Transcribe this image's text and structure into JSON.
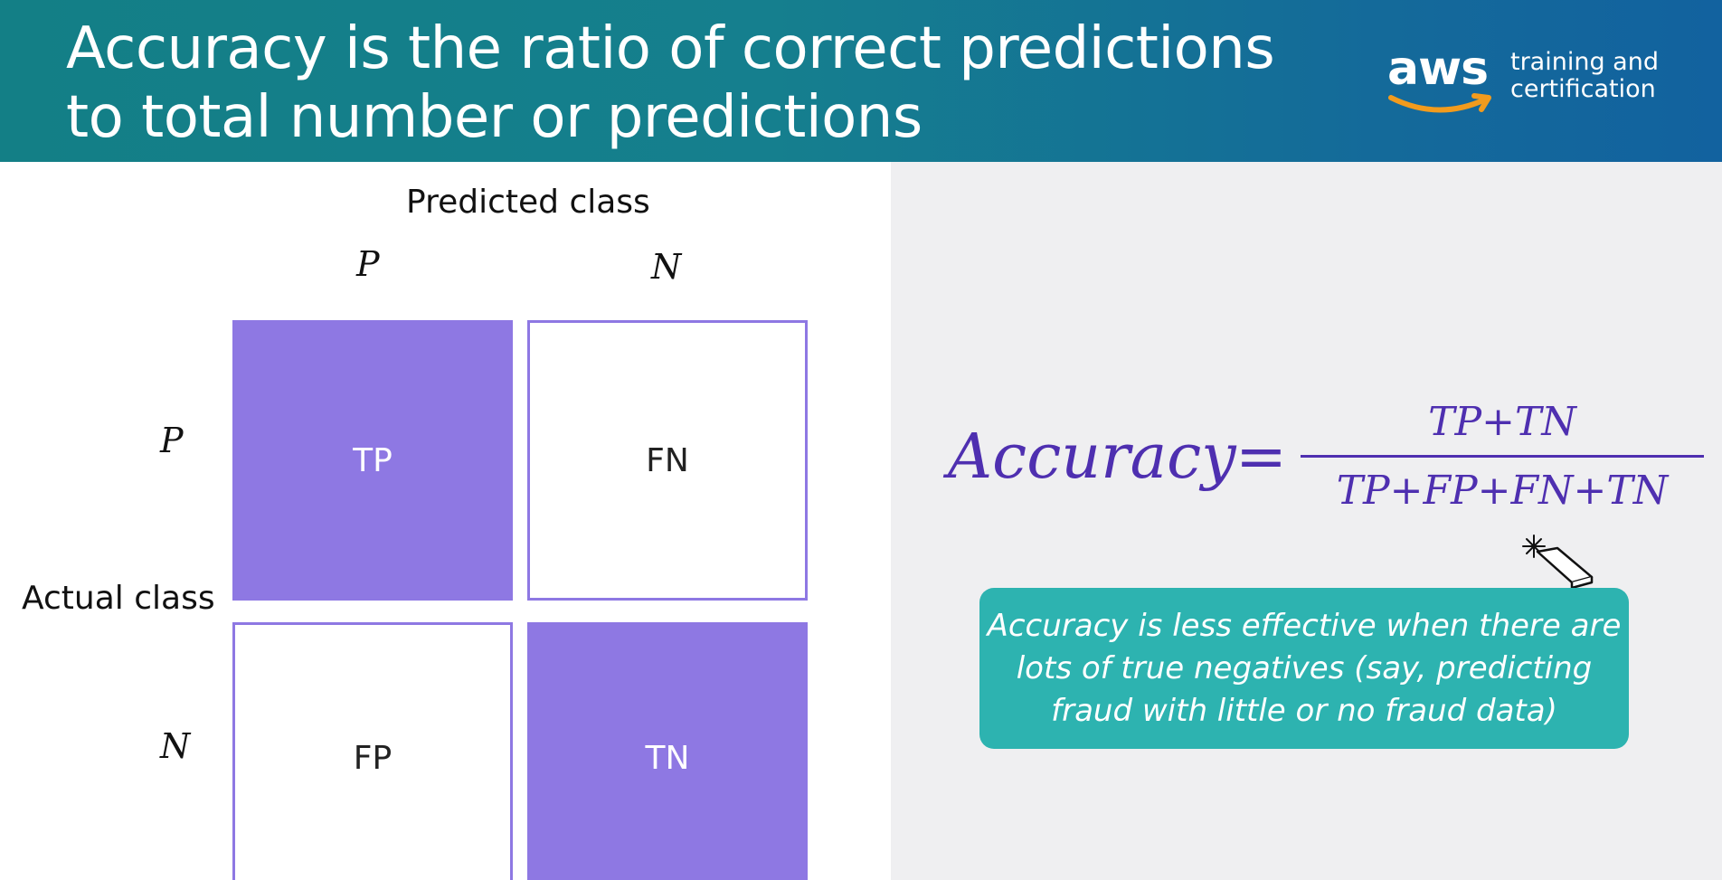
{
  "header": {
    "title_line1": "Accuracy is the ratio of correct predictions",
    "title_line2": "to total number or predictions",
    "logo": {
      "word": "aws",
      "sub_line1": "training and",
      "sub_line2": "certification"
    }
  },
  "matrix": {
    "predicted_class_label": "Predicted class",
    "actual_class_label": "Actual class",
    "col_labels": [
      "P",
      "N"
    ],
    "row_labels": [
      "P",
      "N"
    ],
    "cells": {
      "tp": "TP",
      "fn": "FN",
      "fp": "FP",
      "tn": "TN"
    }
  },
  "formula": {
    "lhs": "Accuracy",
    "equals": "=",
    "numerator": "TP+TN",
    "denominator": "TP+FP+FN+TN"
  },
  "callout": {
    "line1": "Accuracy is less effective when there are",
    "line2": "lots of true negatives (say, predicting",
    "line3": "fraud with little or no fraud data)"
  },
  "colors": {
    "header_teal": "#137f86",
    "header_blue": "#12629f",
    "matrix_purple": "#8e78e3",
    "formula_purple": "#4e2fb0",
    "callout_teal": "#2db3b0",
    "logo_smile_orange": "#f29b1d",
    "right_panel_bg": "#efeff1"
  },
  "icons": {
    "cursor": "eraser-cursor-icon",
    "logo_smile": "aws-smile-arrow-icon"
  }
}
